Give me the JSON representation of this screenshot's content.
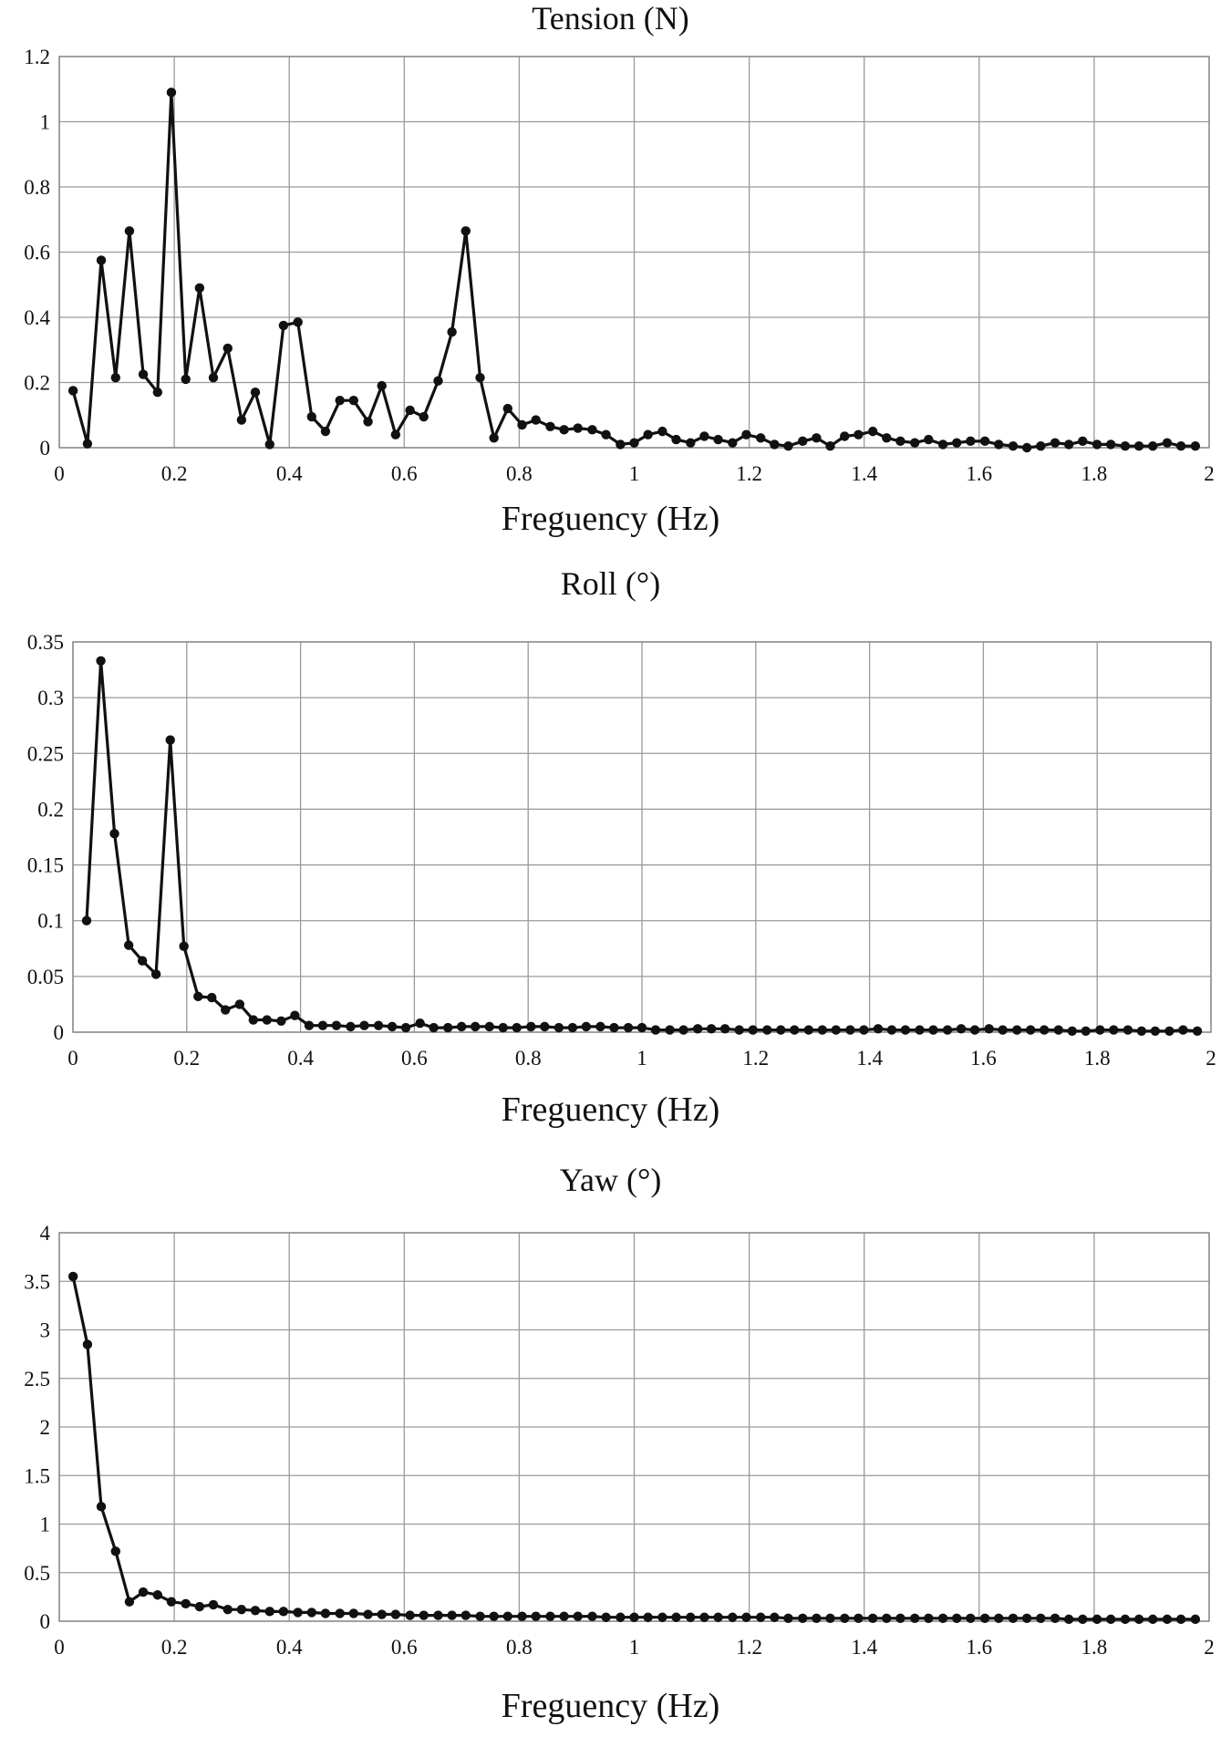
{
  "chart_data": [
    {
      "type": "line",
      "title": "Tension (N)",
      "xlabel": "Freguency (Hz)",
      "ylabel": "",
      "xlim": [
        0,
        2
      ],
      "ylim": [
        0,
        1.2
      ],
      "xticks": [
        "0",
        "0.2",
        "0.4",
        "0.6",
        "0.8",
        "1",
        "1.2",
        "1.4",
        "1.6",
        "1.8",
        "2"
      ],
      "yticks": [
        "0",
        "0.2",
        "0.4",
        "0.6",
        "0.8",
        "1",
        "1.2"
      ],
      "grid": true,
      "series": [
        {
          "values": [
            [
              0.024,
              0.175
            ],
            [
              0.049,
              0.012
            ],
            [
              0.073,
              0.575
            ],
            [
              0.098,
              0.215
            ],
            [
              0.122,
              0.665
            ],
            [
              0.146,
              0.225
            ],
            [
              0.171,
              0.17
            ],
            [
              0.195,
              1.09
            ],
            [
              0.22,
              0.21
            ],
            [
              0.244,
              0.49
            ],
            [
              0.268,
              0.215
            ],
            [
              0.293,
              0.305
            ],
            [
              0.317,
              0.085
            ],
            [
              0.341,
              0.17
            ],
            [
              0.366,
              0.01
            ],
            [
              0.39,
              0.375
            ],
            [
              0.415,
              0.385
            ],
            [
              0.439,
              0.095
            ],
            [
              0.463,
              0.05
            ],
            [
              0.488,
              0.145
            ],
            [
              0.512,
              0.145
            ],
            [
              0.537,
              0.08
            ],
            [
              0.561,
              0.19
            ],
            [
              0.585,
              0.04
            ],
            [
              0.61,
              0.115
            ],
            [
              0.634,
              0.095
            ],
            [
              0.659,
              0.205
            ],
            [
              0.683,
              0.355
            ],
            [
              0.707,
              0.665
            ],
            [
              0.732,
              0.215
            ],
            [
              0.756,
              0.03
            ],
            [
              0.78,
              0.12
            ],
            [
              0.805,
              0.07
            ],
            [
              0.829,
              0.085
            ],
            [
              0.854,
              0.065
            ],
            [
              0.878,
              0.055
            ],
            [
              0.902,
              0.06
            ],
            [
              0.927,
              0.055
            ],
            [
              0.951,
              0.04
            ],
            [
              0.976,
              0.01
            ],
            [
              1.0,
              0.015
            ],
            [
              1.024,
              0.04
            ],
            [
              1.049,
              0.05
            ],
            [
              1.073,
              0.025
            ],
            [
              1.098,
              0.015
            ],
            [
              1.122,
              0.035
            ],
            [
              1.146,
              0.025
            ],
            [
              1.171,
              0.015
            ],
            [
              1.195,
              0.04
            ],
            [
              1.22,
              0.03
            ],
            [
              1.244,
              0.01
            ],
            [
              1.268,
              0.005
            ],
            [
              1.293,
              0.02
            ],
            [
              1.317,
              0.03
            ],
            [
              1.341,
              0.005
            ],
            [
              1.366,
              0.035
            ],
            [
              1.39,
              0.04
            ],
            [
              1.415,
              0.05
            ],
            [
              1.439,
              0.03
            ],
            [
              1.463,
              0.02
            ],
            [
              1.488,
              0.015
            ],
            [
              1.512,
              0.025
            ],
            [
              1.537,
              0.01
            ],
            [
              1.561,
              0.015
            ],
            [
              1.585,
              0.02
            ],
            [
              1.61,
              0.02
            ],
            [
              1.634,
              0.01
            ],
            [
              1.659,
              0.005
            ],
            [
              1.683,
              0.0
            ],
            [
              1.707,
              0.005
            ],
            [
              1.732,
              0.015
            ],
            [
              1.756,
              0.01
            ],
            [
              1.78,
              0.02
            ],
            [
              1.805,
              0.01
            ],
            [
              1.829,
              0.01
            ],
            [
              1.854,
              0.005
            ],
            [
              1.878,
              0.005
            ],
            [
              1.902,
              0.005
            ],
            [
              1.927,
              0.015
            ],
            [
              1.951,
              0.005
            ],
            [
              1.976,
              0.005
            ]
          ]
        }
      ]
    },
    {
      "type": "line",
      "title": "Roll (°)",
      "xlabel": "Freguency (Hz)",
      "ylabel": "",
      "xlim": [
        0,
        2
      ],
      "ylim": [
        0,
        0.35
      ],
      "xticks": [
        "0",
        "0.2",
        "0.4",
        "0.6",
        "0.8",
        "1",
        "1.2",
        "1.4",
        "1.6",
        "1.8",
        "2"
      ],
      "yticks": [
        "0",
        "0.05",
        "0.1",
        "0.15",
        "0.2",
        "0.25",
        "0.3",
        "0.35"
      ],
      "grid": true,
      "series": [
        {
          "values": [
            [
              0.024,
              0.1
            ],
            [
              0.049,
              0.333
            ],
            [
              0.073,
              0.178
            ],
            [
              0.098,
              0.078
            ],
            [
              0.122,
              0.064
            ],
            [
              0.146,
              0.052
            ],
            [
              0.171,
              0.262
            ],
            [
              0.195,
              0.077
            ],
            [
              0.22,
              0.032
            ],
            [
              0.244,
              0.031
            ],
            [
              0.268,
              0.02
            ],
            [
              0.293,
              0.025
            ],
            [
              0.317,
              0.011
            ],
            [
              0.341,
              0.011
            ],
            [
              0.366,
              0.01
            ],
            [
              0.39,
              0.015
            ],
            [
              0.415,
              0.006
            ],
            [
              0.439,
              0.006
            ],
            [
              0.463,
              0.006
            ],
            [
              0.488,
              0.005
            ],
            [
              0.512,
              0.006
            ],
            [
              0.537,
              0.006
            ],
            [
              0.561,
              0.005
            ],
            [
              0.585,
              0.004
            ],
            [
              0.61,
              0.008
            ],
            [
              0.634,
              0.004
            ],
            [
              0.659,
              0.004
            ],
            [
              0.683,
              0.005
            ],
            [
              0.707,
              0.005
            ],
            [
              0.732,
              0.005
            ],
            [
              0.756,
              0.004
            ],
            [
              0.78,
              0.004
            ],
            [
              0.805,
              0.005
            ],
            [
              0.829,
              0.005
            ],
            [
              0.854,
              0.004
            ],
            [
              0.878,
              0.004
            ],
            [
              0.902,
              0.005
            ],
            [
              0.927,
              0.005
            ],
            [
              0.951,
              0.004
            ],
            [
              0.976,
              0.004
            ],
            [
              1.0,
              0.004
            ],
            [
              1.024,
              0.002
            ],
            [
              1.049,
              0.002
            ],
            [
              1.073,
              0.002
            ],
            [
              1.098,
              0.003
            ],
            [
              1.122,
              0.003
            ],
            [
              1.146,
              0.003
            ],
            [
              1.171,
              0.002
            ],
            [
              1.195,
              0.002
            ],
            [
              1.22,
              0.002
            ],
            [
              1.244,
              0.002
            ],
            [
              1.268,
              0.002
            ],
            [
              1.293,
              0.002
            ],
            [
              1.317,
              0.002
            ],
            [
              1.341,
              0.002
            ],
            [
              1.366,
              0.002
            ],
            [
              1.39,
              0.002
            ],
            [
              1.415,
              0.003
            ],
            [
              1.439,
              0.002
            ],
            [
              1.463,
              0.002
            ],
            [
              1.488,
              0.002
            ],
            [
              1.512,
              0.002
            ],
            [
              1.537,
              0.002
            ],
            [
              1.561,
              0.003
            ],
            [
              1.585,
              0.002
            ],
            [
              1.61,
              0.003
            ],
            [
              1.634,
              0.002
            ],
            [
              1.659,
              0.002
            ],
            [
              1.683,
              0.002
            ],
            [
              1.707,
              0.002
            ],
            [
              1.732,
              0.002
            ],
            [
              1.756,
              0.001
            ],
            [
              1.78,
              0.001
            ],
            [
              1.805,
              0.002
            ],
            [
              1.829,
              0.002
            ],
            [
              1.854,
              0.002
            ],
            [
              1.878,
              0.001
            ],
            [
              1.902,
              0.001
            ],
            [
              1.927,
              0.001
            ],
            [
              1.951,
              0.002
            ],
            [
              1.976,
              0.001
            ]
          ]
        }
      ]
    },
    {
      "type": "line",
      "title": "Yaw (°)",
      "xlabel": "Freguency (Hz)",
      "ylabel": "",
      "xlim": [
        0,
        2
      ],
      "ylim": [
        0,
        4
      ],
      "xticks": [
        "0",
        "0.2",
        "0.4",
        "0.6",
        "0.8",
        "1",
        "1.2",
        "1.4",
        "1.6",
        "1.8",
        "2"
      ],
      "yticks": [
        "0",
        "0.5",
        "1",
        "1.5",
        "2",
        "2.5",
        "3",
        "3.5",
        "4"
      ],
      "grid": true,
      "series": [
        {
          "values": [
            [
              0.024,
              3.55
            ],
            [
              0.049,
              2.85
            ],
            [
              0.073,
              1.18
            ],
            [
              0.098,
              0.72
            ],
            [
              0.122,
              0.2
            ],
            [
              0.146,
              0.3
            ],
            [
              0.171,
              0.27
            ],
            [
              0.195,
              0.2
            ],
            [
              0.22,
              0.18
            ],
            [
              0.244,
              0.15
            ],
            [
              0.268,
              0.17
            ],
            [
              0.293,
              0.12
            ],
            [
              0.317,
              0.12
            ],
            [
              0.341,
              0.11
            ],
            [
              0.366,
              0.1
            ],
            [
              0.39,
              0.1
            ],
            [
              0.415,
              0.09
            ],
            [
              0.439,
              0.09
            ],
            [
              0.463,
              0.08
            ],
            [
              0.488,
              0.08
            ],
            [
              0.512,
              0.08
            ],
            [
              0.537,
              0.07
            ],
            [
              0.561,
              0.07
            ],
            [
              0.585,
              0.07
            ],
            [
              0.61,
              0.06
            ],
            [
              0.634,
              0.06
            ],
            [
              0.659,
              0.06
            ],
            [
              0.683,
              0.06
            ],
            [
              0.707,
              0.06
            ],
            [
              0.732,
              0.05
            ],
            [
              0.756,
              0.05
            ],
            [
              0.78,
              0.05
            ],
            [
              0.805,
              0.05
            ],
            [
              0.829,
              0.05
            ],
            [
              0.854,
              0.05
            ],
            [
              0.878,
              0.05
            ],
            [
              0.902,
              0.05
            ],
            [
              0.927,
              0.05
            ],
            [
              0.951,
              0.04
            ],
            [
              0.976,
              0.04
            ],
            [
              1.0,
              0.04
            ],
            [
              1.024,
              0.04
            ],
            [
              1.049,
              0.04
            ],
            [
              1.073,
              0.04
            ],
            [
              1.098,
              0.04
            ],
            [
              1.122,
              0.04
            ],
            [
              1.146,
              0.04
            ],
            [
              1.171,
              0.04
            ],
            [
              1.195,
              0.04
            ],
            [
              1.22,
              0.04
            ],
            [
              1.244,
              0.04
            ],
            [
              1.268,
              0.03
            ],
            [
              1.293,
              0.03
            ],
            [
              1.317,
              0.03
            ],
            [
              1.341,
              0.03
            ],
            [
              1.366,
              0.03
            ],
            [
              1.39,
              0.03
            ],
            [
              1.415,
              0.03
            ],
            [
              1.439,
              0.03
            ],
            [
              1.463,
              0.03
            ],
            [
              1.488,
              0.03
            ],
            [
              1.512,
              0.03
            ],
            [
              1.537,
              0.03
            ],
            [
              1.561,
              0.03
            ],
            [
              1.585,
              0.03
            ],
            [
              1.61,
              0.03
            ],
            [
              1.634,
              0.03
            ],
            [
              1.659,
              0.03
            ],
            [
              1.683,
              0.03
            ],
            [
              1.707,
              0.03
            ],
            [
              1.732,
              0.03
            ],
            [
              1.756,
              0.02
            ],
            [
              1.78,
              0.02
            ],
            [
              1.805,
              0.02
            ],
            [
              1.829,
              0.02
            ],
            [
              1.854,
              0.02
            ],
            [
              1.878,
              0.02
            ],
            [
              1.902,
              0.02
            ],
            [
              1.927,
              0.02
            ],
            [
              1.951,
              0.02
            ],
            [
              1.976,
              0.02
            ]
          ]
        }
      ]
    }
  ]
}
